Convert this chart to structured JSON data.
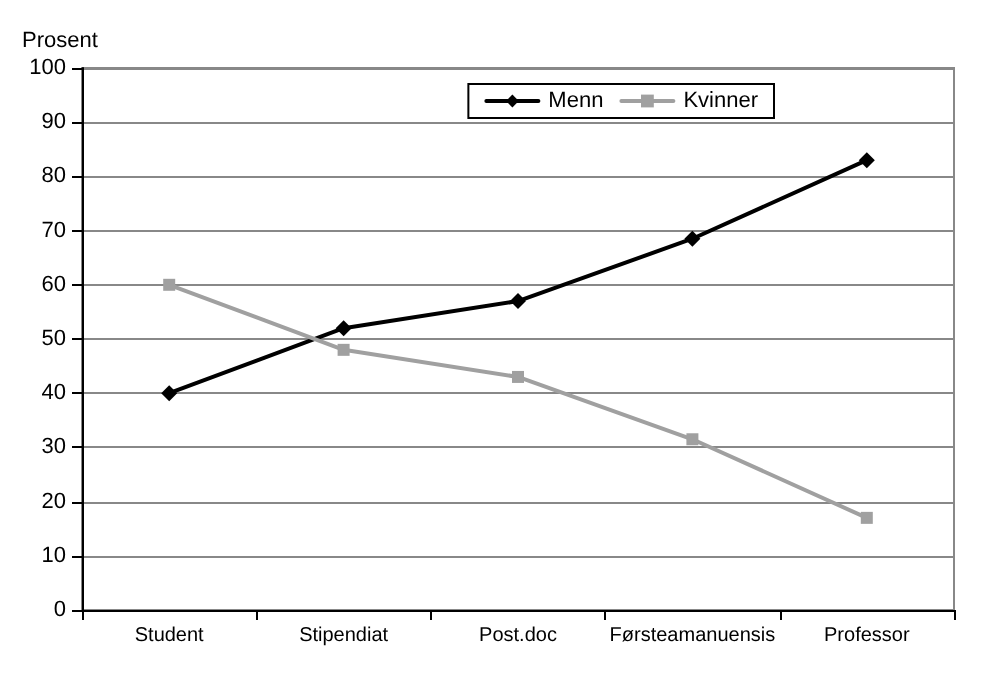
{
  "chart_data": {
    "type": "line",
    "ylabel": "Prosent",
    "categories": [
      "Student",
      "Stipendiat",
      "Post.doc",
      "Førsteamanuensis",
      "Professor"
    ],
    "series": [
      {
        "name": "Menn",
        "color": "#000000",
        "marker": "diamond",
        "values": [
          40,
          52,
          57,
          68.5,
          83
        ]
      },
      {
        "name": "Kvinner",
        "color": "#a0a0a0",
        "marker": "square",
        "values": [
          60,
          48,
          43,
          31.5,
          17
        ]
      }
    ],
    "ylim": [
      0,
      100
    ],
    "yticks": [
      0,
      10,
      20,
      30,
      40,
      50,
      60,
      70,
      80,
      90,
      100
    ],
    "grid": "y",
    "legend": "top right",
    "line_style": "solid"
  }
}
